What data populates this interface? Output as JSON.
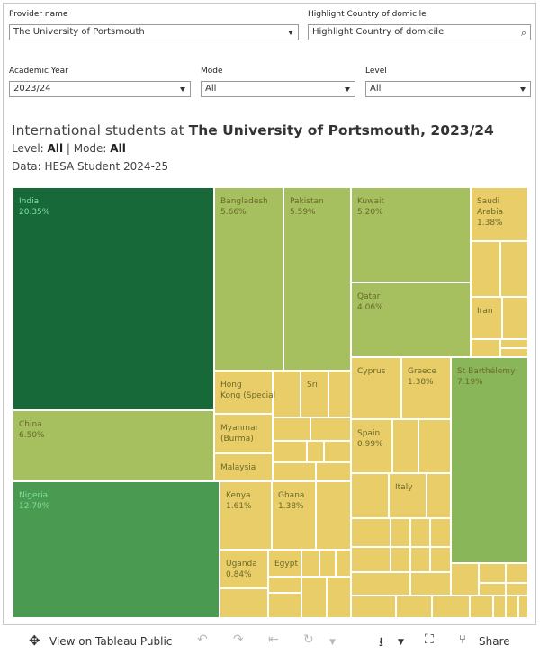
{
  "filters": {
    "provider": {
      "label": "Provider name",
      "value": "The University of Portsmouth"
    },
    "highlight": {
      "label": "Highlight Country of domicile",
      "placeholder": "Highlight Country of domicile"
    },
    "year": {
      "label": "Academic Year",
      "value": "2023/24"
    },
    "mode": {
      "label": "Mode",
      "value": "All"
    },
    "level": {
      "label": "Level",
      "value": "All"
    }
  },
  "heading": {
    "prefix": "International students at ",
    "institution_year": "The University of Portsmouth, 2023/24",
    "level_label": "Level: ",
    "level_value": "All",
    "separator": " | ",
    "mode_label": "Mode: ",
    "mode_value": "All",
    "source": "Data: HESA Student 2024-25"
  },
  "colors": {
    "darkest": "#17693a",
    "dark": "#4a9a51",
    "mid": "#8ab65a",
    "light": "#a6bf5f",
    "pale": "#c5c463",
    "yellow": "#e8cd68",
    "border": "#ffffff",
    "dark_label": "#7ee0a0",
    "light_label": "#6b6a2a"
  },
  "chart_data": {
    "type": "treemap",
    "value_unit": "% of international students",
    "items": [
      {
        "name": "India",
        "value": 20.35,
        "label": "20.35%"
      },
      {
        "name": "Nigeria",
        "value": 12.7,
        "label": "12.70%"
      },
      {
        "name": "St Barthélemy",
        "value": 7.19,
        "label": "7.19%"
      },
      {
        "name": "China",
        "value": 6.5,
        "label": "6.50%"
      },
      {
        "name": "Bangladesh",
        "value": 5.66,
        "label": "5.66%"
      },
      {
        "name": "Pakistan",
        "value": 5.59,
        "label": "5.59%"
      },
      {
        "name": "Kuwait",
        "value": 5.2,
        "label": "5.20%"
      },
      {
        "name": "Qatar",
        "value": 4.06,
        "label": "4.06%"
      },
      {
        "name": "Kenya",
        "value": 1.61,
        "label": "1.61%"
      },
      {
        "name": "Saudi Arabia",
        "value": 1.38,
        "label": "1.38%"
      },
      {
        "name": "Greece",
        "value": 1.38,
        "label": "1.38%"
      },
      {
        "name": "Ghana",
        "value": 1.38,
        "label": "1.38%"
      },
      {
        "name": "Spain",
        "value": 0.99,
        "label": "0.99%"
      },
      {
        "name": "Uganda",
        "value": 0.84,
        "label": "0.84%"
      },
      {
        "name": "Hong Kong (Special",
        "value": null,
        "label": ""
      },
      {
        "name": "Sri",
        "value": null,
        "label": ""
      },
      {
        "name": "Myanmar (Burma)",
        "value": null,
        "label": ""
      },
      {
        "name": "Malaysia",
        "value": null,
        "label": ""
      },
      {
        "name": "Cyprus",
        "value": null,
        "label": ""
      },
      {
        "name": "Italy",
        "value": null,
        "label": ""
      },
      {
        "name": "Egypt",
        "value": null,
        "label": ""
      },
      {
        "name": "Iran",
        "value": null,
        "label": ""
      }
    ]
  },
  "toolbar": {
    "view_label": "View on Tableau Public",
    "share_label": "Share",
    "icons": [
      "tableau-logo-icon",
      "undo-icon",
      "redo-icon",
      "revert-icon",
      "refresh-icon",
      "download-icon",
      "fullscreen-icon",
      "share-icon"
    ]
  }
}
